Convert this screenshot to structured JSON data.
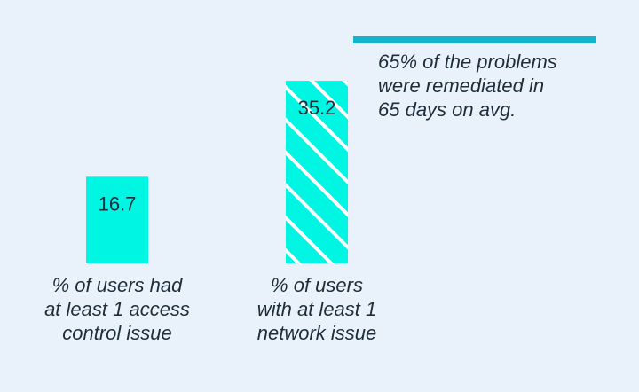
{
  "chart_data": {
    "type": "bar",
    "categories": [
      "% of users had\nat least 1 access\ncontrol issue",
      "% of users\nwith at least 1\nnetwork issue"
    ],
    "values": [
      16.7,
      35.2
    ],
    "data_labels": [
      "16.7",
      "35.2"
    ],
    "ylim": [
      0,
      40
    ],
    "grid": false,
    "colors": {
      "bar": "#00f5e3",
      "hatch": "#ffffff",
      "background": "#e9f2fa",
      "accent": "#14b4cc"
    },
    "patterns": [
      "solid",
      "diagonal-hatch"
    ],
    "annotation": "65% of the problems\nwere remediated in\n65 days on avg."
  }
}
